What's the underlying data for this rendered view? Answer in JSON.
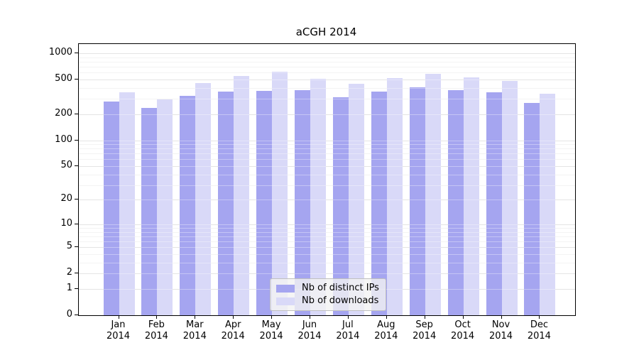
{
  "page": {
    "background": "#ffffff"
  },
  "chart_data": {
    "type": "bar",
    "title": "aCGH 2014",
    "x_categories": [
      "Jan",
      "Feb",
      "Mar",
      "Apr",
      "May",
      "Jun",
      "Jul",
      "Aug",
      "Sep",
      "Oct",
      "Nov",
      "Dec"
    ],
    "x_year": "2014",
    "series": [
      {
        "name": "Nb of distinct IPs",
        "color": "#a5a5f0",
        "values": [
          280,
          237,
          322,
          363,
          370,
          377,
          314,
          360,
          409,
          377,
          354,
          268
        ]
      },
      {
        "name": "Nb of downloads",
        "color": "#d9d9f8",
        "values": [
          355,
          295,
          455,
          548,
          612,
          507,
          445,
          515,
          577,
          530,
          484,
          343
        ]
      }
    ],
    "yscale": "log1p",
    "ylim": [
      0,
      1270
    ],
    "y_axis_ticks": [
      0,
      1,
      2,
      5,
      10,
      20,
      50,
      100,
      200,
      500,
      1000
    ],
    "y_minor_gridlines": [
      3,
      4,
      6,
      7,
      8,
      9,
      30,
      40,
      60,
      70,
      80,
      90,
      300,
      400,
      600,
      700,
      800,
      900
    ],
    "grid": true,
    "legend_position": "inside-bottom-center",
    "colors": {
      "axis": "#000000",
      "major_grid": "#d6d6d6",
      "minor_grid": "#ededed",
      "legend_bg": "rgba(243,243,243,0.8)",
      "legend_border": "#c0c0c0"
    }
  }
}
